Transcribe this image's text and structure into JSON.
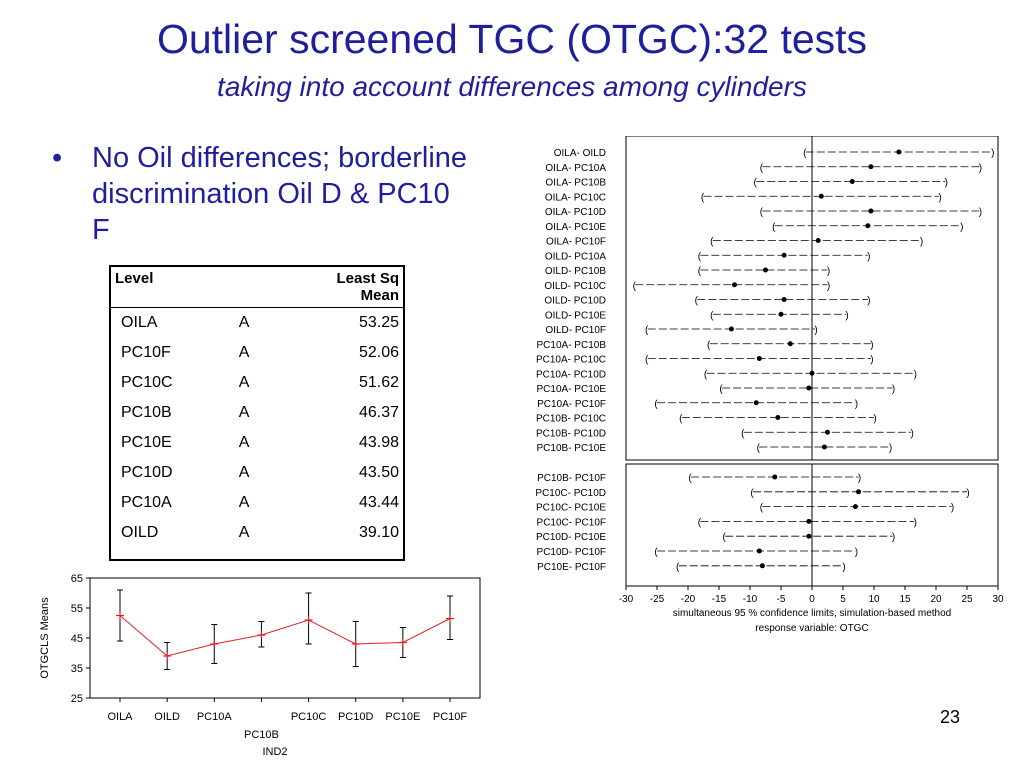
{
  "slide": {
    "title": "Outlier screened TGC (OTGC):32 tests",
    "subtitle": "taking into account differences among cylinders",
    "bullet": "No Oil differences; borderline discrimination Oil D & PC10 F",
    "page_number": "23"
  },
  "lsmeans_table": {
    "col_level": "Level",
    "col_mean_line1": "Least Sq",
    "col_mean_line2": "Mean",
    "rows": [
      {
        "level": "OILA",
        "group": "A",
        "mean": "53.25"
      },
      {
        "level": "PC10F",
        "group": "A",
        "mean": "52.06"
      },
      {
        "level": "PC10C",
        "group": "A",
        "mean": "51.62"
      },
      {
        "level": "PC10B",
        "group": "A",
        "mean": "46.37"
      },
      {
        "level": "PC10E",
        "group": "A",
        "mean": "43.98"
      },
      {
        "level": "PC10D",
        "group": "A",
        "mean": "43.50"
      },
      {
        "level": "PC10A",
        "group": "A",
        "mean": "43.44"
      },
      {
        "level": "OILD",
        "group": "A",
        "mean": "39.10"
      }
    ]
  },
  "chart_data": [
    {
      "type": "line",
      "ylabel": "OTGCLS Means",
      "xlabel": "IND2",
      "ylim": [
        25,
        65
      ],
      "yticks": [
        25,
        35,
        45,
        55,
        65
      ],
      "categories": [
        "OILA",
        "OILD",
        "PC10A",
        "PC10B",
        "PC10C",
        "PC10D",
        "PC10E",
        "PC10F"
      ],
      "series": [
        {
          "color": "#e02020",
          "values": [
            52.5,
            39,
            43,
            46,
            51,
            43,
            43.5,
            51.5
          ],
          "lower": [
            44,
            34.5,
            36.5,
            42,
            43,
            35.5,
            38.5,
            44.5
          ],
          "upper": [
            61,
            43.5,
            49.5,
            50.5,
            60,
            50.5,
            48.5,
            59
          ]
        }
      ]
    },
    {
      "type": "interval",
      "xlabel": "simultaneous  95 % confidence limits, simulation-based method",
      "xlabel2": "response variable: OTGC",
      "xlim": [
        -30,
        30
      ],
      "xticks": [
        -30,
        -25,
        -20,
        -15,
        -10,
        -5,
        0,
        5,
        10,
        15,
        20,
        25,
        30
      ],
      "top_panel": [
        {
          "label": "OILA- OILD",
          "low": -1,
          "est": 14,
          "high": 29
        },
        {
          "label": "OILA- PC10A",
          "low": -8,
          "est": 9.5,
          "high": 27
        },
        {
          "label": "OILA- PC10B",
          "low": -9,
          "est": 6.5,
          "high": 21.5
        },
        {
          "label": "OILA- PC10C",
          "low": -17.5,
          "est": 1.5,
          "high": 20.5
        },
        {
          "label": "OILA- PC10D",
          "low": -8,
          "est": 9.5,
          "high": 27
        },
        {
          "label": "OILA- PC10E",
          "low": -6,
          "est": 9,
          "high": 24
        },
        {
          "label": "OILA- PC10F",
          "low": -16,
          "est": 1,
          "high": 17.5
        },
        {
          "label": "OILD- PC10A",
          "low": -18,
          "est": -4.5,
          "high": 9
        },
        {
          "label": "OILD- PC10B",
          "low": -18,
          "est": -7.5,
          "high": 2.5
        },
        {
          "label": "OILD- PC10C",
          "low": -28.5,
          "est": -12.5,
          "high": 2.5
        },
        {
          "label": "OILD- PC10D",
          "low": -18.5,
          "est": -4.5,
          "high": 9
        },
        {
          "label": "OILD- PC10E",
          "low": -16,
          "est": -5,
          "high": 5.5
        },
        {
          "label": "OILD- PC10F",
          "low": -26.5,
          "est": -13,
          "high": 0.5
        },
        {
          "label": "PC10A- PC10B",
          "low": -16.5,
          "est": -3.5,
          "high": 9.5
        },
        {
          "label": "PC10A- PC10C",
          "low": -26.5,
          "est": -8.5,
          "high": 9.5
        },
        {
          "label": "PC10A- PC10D",
          "low": -17,
          "est": 0,
          "high": 16.5
        },
        {
          "label": "PC10A- PC10E",
          "low": -14.5,
          "est": -0.5,
          "high": 13
        },
        {
          "label": "PC10A- PC10F",
          "low": -25,
          "est": -9,
          "high": 7
        },
        {
          "label": "PC10B- PC10C",
          "low": -21,
          "est": -5.5,
          "high": 10
        },
        {
          "label": "PC10B- PC10D",
          "low": -11,
          "est": 2.5,
          "high": 16
        },
        {
          "label": "PC10B- PC10E",
          "low": -8.5,
          "est": 2,
          "high": 12.5
        }
      ],
      "bottom_panel": [
        {
          "label": "PC10B- PC10F",
          "low": -19.5,
          "est": -6,
          "high": 7.5
        },
        {
          "label": "PC10C- PC10D",
          "low": -9.5,
          "est": 7.5,
          "high": 25
        },
        {
          "label": "PC10C- PC10E",
          "low": -8,
          "est": 7,
          "high": 22.5
        },
        {
          "label": "PC10C- PC10F",
          "low": -18,
          "est": -0.5,
          "high": 16.5
        },
        {
          "label": "PC10D- PC10E",
          "low": -14,
          "est": -0.5,
          "high": 13
        },
        {
          "label": "PC10D- PC10F",
          "low": -25,
          "est": -8.5,
          "high": 7
        },
        {
          "label": "PC10E- PC10F",
          "low": -21.5,
          "est": -8,
          "high": 5
        }
      ]
    }
  ]
}
